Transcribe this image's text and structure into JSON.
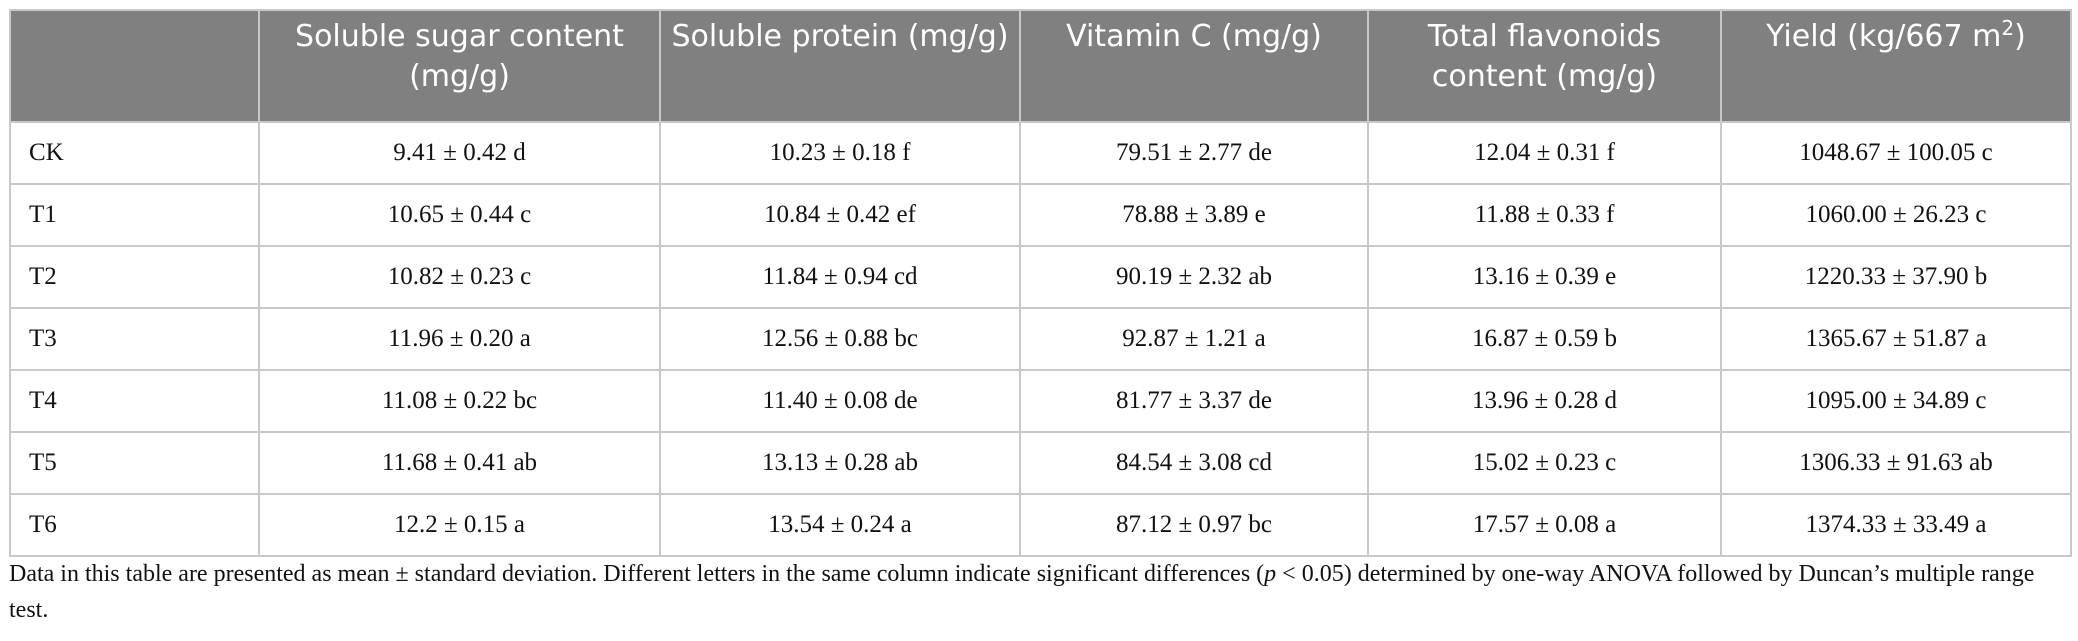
{
  "table": {
    "headers": [
      "",
      "Soluble sugar content (mg/g)",
      "Soluble protein (mg/g)",
      "Vitamin C (mg/g)",
      "Total flavonoids content (mg/g)",
      {
        "text": "Yield (kg/667 m",
        "sup": "2",
        "after": ")"
      }
    ],
    "rows": [
      [
        "CK",
        "9.41 ± 0.42 d",
        "10.23 ± 0.18 f",
        "79.51 ± 2.77 de",
        "12.04 ± 0.31 f",
        "1048.67 ± 100.05 c"
      ],
      [
        "T1",
        "10.65 ± 0.44 c",
        "10.84 ± 0.42 ef",
        "78.88 ± 3.89 e",
        "11.88 ± 0.33 f",
        "1060.00 ± 26.23 c"
      ],
      [
        "T2",
        "10.82 ± 0.23 c",
        "11.84 ± 0.94 cd",
        "90.19 ± 2.32 ab",
        "13.16 ± 0.39 e",
        "1220.33 ± 37.90 b"
      ],
      [
        "T3",
        "11.96 ± 0.20 a",
        "12.56 ± 0.88 bc",
        "92.87 ± 1.21 a",
        "16.87 ± 0.59 b",
        "1365.67 ± 51.87 a"
      ],
      [
        "T4",
        "11.08 ± 0.22 bc",
        "11.40 ± 0.08 de",
        "81.77 ± 3.37 de",
        "13.96 ± 0.28 d",
        "1095.00 ± 34.89 c"
      ],
      [
        "T5",
        "11.68 ± 0.41 ab",
        "13.13 ± 0.28 ab",
        "84.54 ± 3.08 cd",
        "15.02 ± 0.23 c",
        "1306.33 ± 91.63 ab"
      ],
      [
        "T6",
        "12.2 ± 0.15 a",
        "13.54 ± 0.24 a",
        "87.12 ± 0.97 bc",
        "17.57 ± 0.08 a",
        "1374.33 ± 33.49 a"
      ]
    ]
  },
  "note": [
    "Data in this table are presented as mean ± standard deviation. Different letters in the same column indicate significant differences (",
    "p",
    " < 0.05) determined by one-way ANOVA followed by Duncan’s multiple range test."
  ]
}
